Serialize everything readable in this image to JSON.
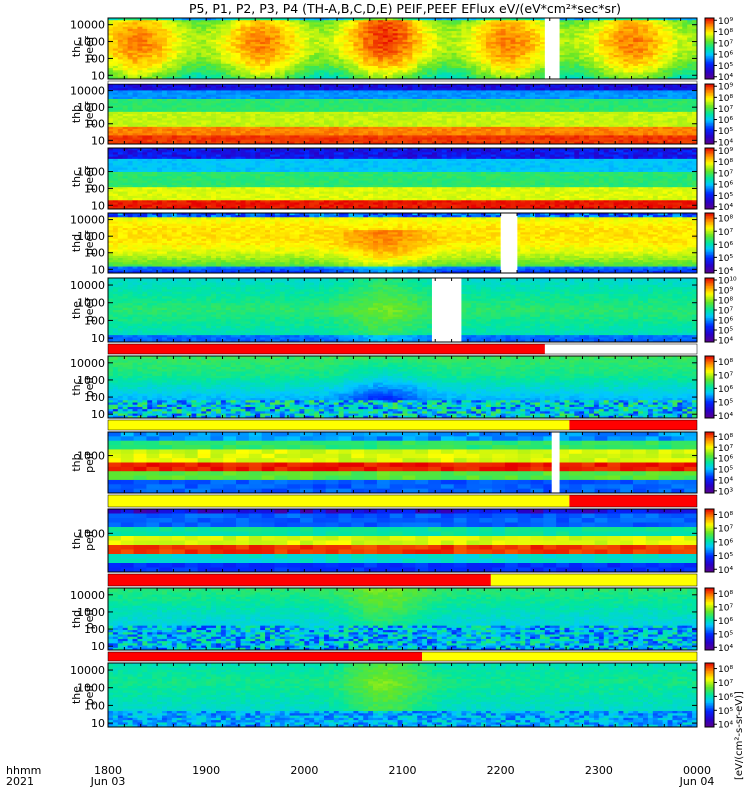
{
  "chart_data": {
    "type": "heatmap",
    "title": "P5, P1, P2, P3, P4 (TH-A,B,C,D,E) PEIF,PEEF EFlux eV/(eV*cm²*sec*sr)",
    "time_label": "hhmm",
    "year_label": "2021",
    "x_ticks": [
      {
        "label": "1800",
        "date": "Jun 03",
        "hour": 18
      },
      {
        "label": "1900",
        "date": "",
        "hour": 19
      },
      {
        "label": "2000",
        "date": "",
        "hour": 20
      },
      {
        "label": "2100",
        "date": "",
        "hour": 21
      },
      {
        "label": "2200",
        "date": "",
        "hour": 22
      },
      {
        "label": "2300",
        "date": "",
        "hour": 23
      },
      {
        "label": "0000",
        "date": "Jun 04",
        "hour": 24
      }
    ],
    "xlim": [
      18,
      24
    ],
    "colorbar_label": "[eV/(cm²-s-sr-eV)]",
    "panels": [
      {
        "id": "thc-peef",
        "label_top": "thc",
        "label_bottom": "peef",
        "yticks": [
          "10000",
          "1000",
          "100",
          "10"
        ],
        "ytick_values": [
          10000,
          1000,
          100,
          10
        ],
        "ylim": [
          6,
          25000
        ],
        "cbar_ticks": [
          "10⁹",
          "10⁸",
          "10⁷",
          "10⁶",
          "10⁵",
          "10⁴"
        ],
        "cbar_values": [
          9,
          8,
          7,
          6,
          5,
          4
        ],
        "cbar_range": [
          3.8,
          9.2
        ],
        "gaps": [
          [
            22.45,
            22.6
          ]
        ],
        "mode": "electron-hot"
      },
      {
        "id": "thb-peef",
        "label_top": "thb",
        "label_bottom": "peef",
        "yticks": [
          "10000",
          "1000",
          "100",
          "10"
        ],
        "ytick_values": [
          10000,
          1000,
          100,
          10
        ],
        "ylim": [
          6,
          25000
        ],
        "cbar_ticks": [
          "10⁹",
          "10⁸",
          "10⁷",
          "10⁶",
          "10⁵",
          "10⁴"
        ],
        "cbar_values": [
          9,
          8,
          7,
          6,
          5,
          4
        ],
        "cbar_range": [
          3.8,
          9.2
        ],
        "gaps": [],
        "mode": "electron-layered"
      },
      {
        "id": "thc-peef-2",
        "label_top": "thc",
        "label_bottom": "peef",
        "yticks": [
          "1000",
          "100",
          "10"
        ],
        "ytick_values": [
          1000,
          100,
          10
        ],
        "ylim": [
          6,
          25000
        ],
        "cbar_ticks": [
          "10⁹",
          "10⁸",
          "10⁷",
          "10⁶",
          "10⁵",
          "10⁴"
        ],
        "cbar_values": [
          9,
          8,
          7,
          6,
          5,
          4
        ],
        "cbar_range": [
          3.8,
          9.2
        ],
        "gaps": [],
        "mode": "electron-layered-low"
      },
      {
        "id": "thd-peef",
        "label_top": "thd",
        "label_bottom": "peef",
        "yticks": [
          "10000",
          "1000",
          "100",
          "10"
        ],
        "ytick_values": [
          10000,
          1000,
          100,
          10
        ],
        "ylim": [
          6,
          25000
        ],
        "cbar_ticks": [
          "10⁸",
          "10⁷",
          "10⁶",
          "10⁵",
          "10⁴"
        ],
        "cbar_values": [
          8,
          7,
          6,
          5,
          4
        ],
        "cbar_range": [
          3.8,
          8.4
        ],
        "gaps": [
          [
            22.0,
            22.17
          ]
        ],
        "mode": "electron-hot-d"
      },
      {
        "id": "the-peef",
        "label_top": "the",
        "label_bottom": "peef",
        "yticks": [
          "10000",
          "1000",
          "100",
          "10"
        ],
        "ytick_values": [
          10000,
          1000,
          100,
          10
        ],
        "ylim": [
          6,
          25000
        ],
        "cbar_ticks": [
          "10¹⁰",
          "10⁹",
          "10⁸",
          "10⁷",
          "10⁶",
          "10⁵",
          "10⁴"
        ],
        "cbar_values": [
          10,
          9,
          8,
          7,
          6,
          5,
          4
        ],
        "cbar_range": [
          3.8,
          10.2
        ],
        "gaps": [
          [
            21.3,
            21.6
          ]
        ],
        "mode": "electron-green"
      },
      {
        "id": "thc-peif",
        "label_top": "thc",
        "label_bottom": "peif",
        "yticks": [
          "10000",
          "1000",
          "100",
          "10"
        ],
        "ytick_values": [
          10000,
          1000,
          100,
          10
        ],
        "ylim": [
          6,
          25000
        ],
        "cbar_ticks": [
          "10⁸",
          "10⁷",
          "10⁶",
          "10⁵",
          "10⁴"
        ],
        "cbar_values": [
          8,
          7,
          6,
          5,
          4
        ],
        "cbar_range": [
          3.8,
          8.4
        ],
        "gaps": [],
        "mode": "ion-c"
      },
      {
        "id": "thb-peif",
        "label_top": "thb",
        "label_bottom": "peif",
        "yticks": [
          "1000"
        ],
        "ytick_values": [
          1000
        ],
        "ylim": [
          6,
          25000
        ],
        "cbar_ticks": [
          "10⁸",
          "10⁷",
          "10⁶",
          "10⁵",
          "10⁴",
          "10³"
        ],
        "cbar_values": [
          8,
          7,
          6,
          5,
          4,
          3
        ],
        "cbar_range": [
          2.8,
          8.4
        ],
        "gaps": [
          [
            22.52,
            22.6
          ]
        ],
        "mode": "ion-b"
      },
      {
        "id": "thc-peif-2",
        "label_top": "thc",
        "label_bottom": "peif",
        "yticks": [
          "1000"
        ],
        "ytick_values": [
          1000
        ],
        "ylim": [
          6,
          25000
        ],
        "cbar_ticks": [
          "10⁸",
          "10⁷",
          "10⁶",
          "10⁵",
          "10⁴"
        ],
        "cbar_values": [
          8,
          7,
          6,
          5,
          4
        ],
        "cbar_range": [
          3.8,
          8.4
        ],
        "gaps": [],
        "mode": "ion-cb"
      },
      {
        "id": "thd-peif",
        "label_top": "thd",
        "label_bottom": "peif",
        "yticks": [
          "10000",
          "1000",
          "100",
          "10"
        ],
        "ytick_values": [
          10000,
          1000,
          100,
          10
        ],
        "ylim": [
          6,
          25000
        ],
        "cbar_ticks": [
          "10⁸",
          "10⁷",
          "10⁶",
          "10⁵",
          "10⁴"
        ],
        "cbar_values": [
          8,
          7,
          6,
          5,
          4
        ],
        "cbar_range": [
          3.8,
          8.4
        ],
        "gaps": [],
        "mode": "ion-d"
      },
      {
        "id": "the-peif",
        "label_top": "the",
        "label_bottom": "peif",
        "yticks": [
          "10000",
          "1000",
          "100",
          "10"
        ],
        "ytick_values": [
          10000,
          1000,
          100,
          10
        ],
        "ylim": [
          6,
          25000
        ],
        "cbar_ticks": [
          "10⁸",
          "10⁷",
          "10⁶",
          "10⁵",
          "10⁴"
        ],
        "cbar_values": [
          8,
          7,
          6,
          5,
          4
        ],
        "cbar_range": [
          3.8,
          8.4
        ],
        "gaps": [],
        "mode": "ion-e"
      }
    ],
    "flag_bars": [
      {
        "after_panel": 0,
        "segments": [
          {
            "from": 18,
            "to": 22.5,
            "color": "#ffffff"
          },
          {
            "from": 22.5,
            "to": 24,
            "color": "#ffffff"
          }
        ]
      },
      {
        "after_panel": 4,
        "segments": [
          {
            "from": 18,
            "to": 22.45,
            "color": "#ff0000"
          }
        ]
      },
      {
        "after_panel": 5,
        "segments": [
          {
            "from": 18,
            "to": 22.7,
            "color": "#ffff00"
          },
          {
            "from": 22.7,
            "to": 24,
            "color": "#ff0000"
          }
        ]
      },
      {
        "after_panel": 6,
        "segments": [
          {
            "from": 18,
            "to": 22.7,
            "color": "#ffff00"
          },
          {
            "from": 22.7,
            "to": 24,
            "color": "#ff0000"
          }
        ]
      },
      {
        "after_panel": 7,
        "segments": [
          {
            "from": 18,
            "to": 21.9,
            "color": "#ff0000"
          },
          {
            "from": 21.9,
            "to": 24,
            "color": "#ffff00"
          }
        ]
      },
      {
        "after_panel": 8,
        "segments": [
          {
            "from": 18,
            "to": 21.2,
            "color": "#ff0000"
          },
          {
            "from": 21.2,
            "to": 24,
            "color": "#ffff00"
          }
        ]
      }
    ]
  }
}
